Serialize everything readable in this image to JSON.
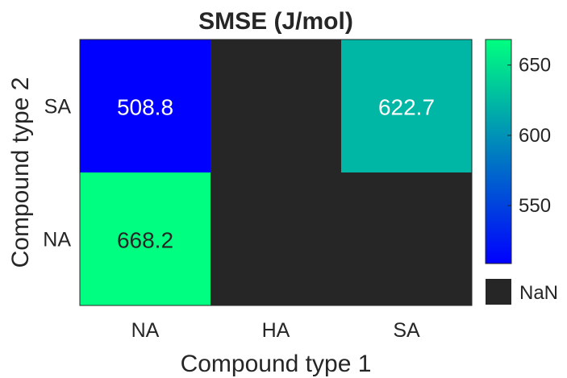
{
  "chart_data": {
    "type": "heatmap",
    "title": "SMSE (J/mol)",
    "xlabel": "Compound type 1",
    "ylabel": "Compound type 2",
    "x_categories": [
      "NA",
      "HA",
      "SA"
    ],
    "y_categories": [
      "SA",
      "NA"
    ],
    "cells": [
      {
        "x": "NA",
        "y": "SA",
        "value": 508.8,
        "label": "508.8"
      },
      {
        "x": "HA",
        "y": "SA",
        "value": null,
        "label": ""
      },
      {
        "x": "SA",
        "y": "SA",
        "value": 622.7,
        "label": "622.7"
      },
      {
        "x": "NA",
        "y": "NA",
        "value": 668.2,
        "label": "668.2"
      },
      {
        "x": "HA",
        "y": "NA",
        "value": null,
        "label": ""
      },
      {
        "x": "SA",
        "y": "NA",
        "value": null,
        "label": ""
      }
    ],
    "colorbar": {
      "range": [
        508.8,
        668.2
      ],
      "ticks": [
        550,
        600,
        650
      ],
      "tick_labels": [
        "550",
        "600",
        "650"
      ],
      "colormap": [
        "#0000ff",
        "#00ff80"
      ],
      "nan_color": "#262626",
      "nan_label": "NaN"
    }
  }
}
